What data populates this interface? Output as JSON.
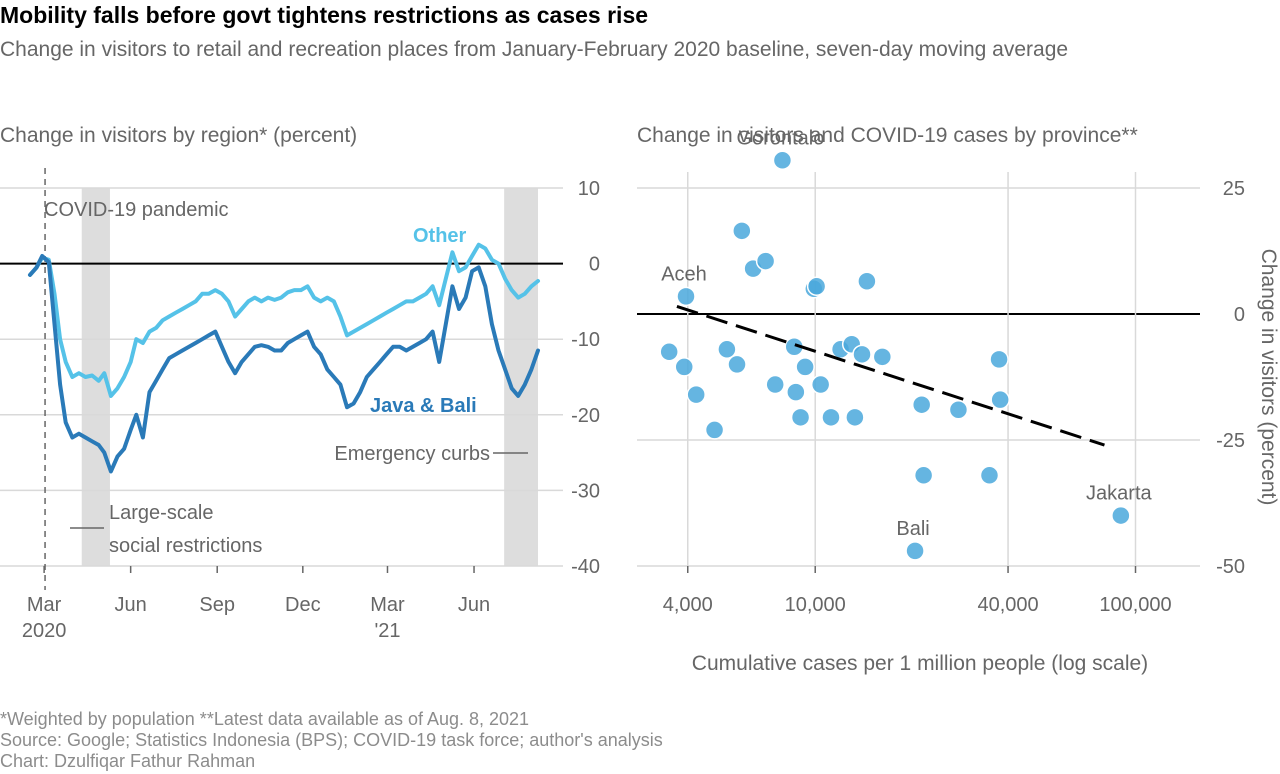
{
  "header": {
    "title": "Mobility falls before govt tightens restrictions as cases rise",
    "subtitle": "Change in visitors to retail and recreation places from January-February 2020 baseline, seven-day moving average"
  },
  "footer": {
    "note": "*Weighted by population **Latest data available as of Aug. 8, 2021",
    "source": "Source: Google; Statistics Indonesia (BPS); COVID-19 task force; author's analysis",
    "credit": "Chart: Dzulfiqar Fathur Rahman"
  },
  "colors": {
    "java_bali": "#2a7ab8",
    "other": "#55c2e8",
    "dots": "#4aa8dc",
    "band": "#dddddd",
    "grid": "#d9d9d9",
    "axis_text": "#666666"
  },
  "chart_data": [
    {
      "type": "line",
      "title": "Change in visitors by region* (percent)",
      "ylim": [
        -40,
        10
      ],
      "yticks": [
        10,
        0,
        -10,
        -20,
        -30,
        -40
      ],
      "ytick_labels": [
        "10",
        "0",
        "-10",
        "-20",
        "-30",
        "-40"
      ],
      "xticks": [
        {
          "date": "2020-03-01",
          "label": "Mar",
          "label2": "2020"
        },
        {
          "date": "2020-06-01",
          "label": "Jun",
          "label2": ""
        },
        {
          "date": "2020-09-01",
          "label": "Sep",
          "label2": ""
        },
        {
          "date": "2020-12-01",
          "label": "Dec",
          "label2": ""
        },
        {
          "date": "2021-03-01",
          "label": "Mar",
          "label2": "'21"
        },
        {
          "date": "2021-06-01",
          "label": "Jun",
          "label2": ""
        }
      ],
      "xrange": [
        "2020-02-15",
        "2021-08-08"
      ],
      "pandemic_date": "2020-03-02",
      "bands": [
        {
          "start": "2020-04-10",
          "end": "2020-05-10"
        },
        {
          "start": "2021-07-03",
          "end": "2021-08-08"
        }
      ],
      "annotations": {
        "pandemic": "COVID-19 pandemic",
        "psbb_line1": "Large-scale",
        "psbb_line2": "social restrictions",
        "emergency": "Emergency curbs"
      },
      "series": [
        {
          "name": "Other",
          "points": [
            [
              "2020-02-15",
              -1.5
            ],
            [
              "2020-02-22",
              -0.5
            ],
            [
              "2020-02-28",
              0.8
            ],
            [
              "2020-03-06",
              0.5
            ],
            [
              "2020-03-12",
              -4
            ],
            [
              "2020-03-18",
              -10
            ],
            [
              "2020-03-24",
              -13
            ],
            [
              "2020-03-31",
              -15
            ],
            [
              "2020-04-07",
              -14.5
            ],
            [
              "2020-04-14",
              -15
            ],
            [
              "2020-04-21",
              -14.8
            ],
            [
              "2020-04-28",
              -15.5
            ],
            [
              "2020-05-04",
              -14.5
            ],
            [
              "2020-05-11",
              -17.5
            ],
            [
              "2020-05-18",
              -16.5
            ],
            [
              "2020-05-25",
              -15
            ],
            [
              "2020-06-01",
              -13
            ],
            [
              "2020-06-07",
              -10
            ],
            [
              "2020-06-14",
              -10.5
            ],
            [
              "2020-06-21",
              -9
            ],
            [
              "2020-06-28",
              -8.5
            ],
            [
              "2020-07-05",
              -7.5
            ],
            [
              "2020-07-12",
              -7
            ],
            [
              "2020-07-19",
              -6.5
            ],
            [
              "2020-07-26",
              -6
            ],
            [
              "2020-08-02",
              -5.5
            ],
            [
              "2020-08-09",
              -5
            ],
            [
              "2020-08-16",
              -4
            ],
            [
              "2020-08-23",
              -4
            ],
            [
              "2020-08-30",
              -3.5
            ],
            [
              "2020-09-06",
              -4
            ],
            [
              "2020-09-13",
              -5
            ],
            [
              "2020-09-20",
              -7
            ],
            [
              "2020-09-27",
              -6
            ],
            [
              "2020-10-04",
              -5
            ],
            [
              "2020-10-11",
              -4.5
            ],
            [
              "2020-10-18",
              -5
            ],
            [
              "2020-10-25",
              -4.5
            ],
            [
              "2020-11-01",
              -4.8
            ],
            [
              "2020-11-08",
              -4.5
            ],
            [
              "2020-11-15",
              -3.8
            ],
            [
              "2020-11-22",
              -3.5
            ],
            [
              "2020-11-29",
              -3.5
            ],
            [
              "2020-12-06",
              -3
            ],
            [
              "2020-12-13",
              -4.5
            ],
            [
              "2020-12-20",
              -5
            ],
            [
              "2020-12-27",
              -4.5
            ],
            [
              "2021-01-03",
              -5
            ],
            [
              "2021-01-10",
              -7
            ],
            [
              "2021-01-17",
              -9.5
            ],
            [
              "2021-01-24",
              -9
            ],
            [
              "2021-01-31",
              -8.5
            ],
            [
              "2021-02-07",
              -8
            ],
            [
              "2021-02-14",
              -7.5
            ],
            [
              "2021-02-21",
              -7
            ],
            [
              "2021-02-28",
              -6.5
            ],
            [
              "2021-03-07",
              -6
            ],
            [
              "2021-03-14",
              -5.5
            ],
            [
              "2021-03-21",
              -5
            ],
            [
              "2021-03-28",
              -5
            ],
            [
              "2021-04-04",
              -4.5
            ],
            [
              "2021-04-11",
              -4
            ],
            [
              "2021-04-18",
              -3
            ],
            [
              "2021-04-25",
              -5.5
            ],
            [
              "2021-05-02",
              -2
            ],
            [
              "2021-05-09",
              1.5
            ],
            [
              "2021-05-16",
              -1
            ],
            [
              "2021-05-23",
              -0.5
            ],
            [
              "2021-05-30",
              1
            ],
            [
              "2021-06-06",
              2.5
            ],
            [
              "2021-06-13",
              2
            ],
            [
              "2021-06-20",
              0.5
            ],
            [
              "2021-06-27",
              0
            ],
            [
              "2021-07-04",
              -2
            ],
            [
              "2021-07-11",
              -3.5
            ],
            [
              "2021-07-18",
              -4.5
            ],
            [
              "2021-07-25",
              -4
            ],
            [
              "2021-08-01",
              -3
            ],
            [
              "2021-08-08",
              -2.3
            ]
          ]
        },
        {
          "name": "Java & Bali",
          "points": [
            [
              "2020-02-15",
              -1.5
            ],
            [
              "2020-02-22",
              -0.5
            ],
            [
              "2020-02-28",
              1.0
            ],
            [
              "2020-03-06",
              0.2
            ],
            [
              "2020-03-12",
              -8
            ],
            [
              "2020-03-18",
              -16
            ],
            [
              "2020-03-24",
              -21
            ],
            [
              "2020-03-31",
              -23
            ],
            [
              "2020-04-07",
              -22.5
            ],
            [
              "2020-04-14",
              -23
            ],
            [
              "2020-04-21",
              -23.5
            ],
            [
              "2020-04-28",
              -24
            ],
            [
              "2020-05-04",
              -25
            ],
            [
              "2020-05-11",
              -27.5
            ],
            [
              "2020-05-18",
              -25.5
            ],
            [
              "2020-05-25",
              -24.5
            ],
            [
              "2020-06-01",
              -22
            ],
            [
              "2020-06-07",
              -20
            ],
            [
              "2020-06-14",
              -23
            ],
            [
              "2020-06-21",
              -17
            ],
            [
              "2020-06-28",
              -15.5
            ],
            [
              "2020-07-05",
              -14
            ],
            [
              "2020-07-12",
              -12.5
            ],
            [
              "2020-07-19",
              -12
            ],
            [
              "2020-07-26",
              -11.5
            ],
            [
              "2020-08-02",
              -11
            ],
            [
              "2020-08-09",
              -10.5
            ],
            [
              "2020-08-16",
              -10
            ],
            [
              "2020-08-23",
              -9.5
            ],
            [
              "2020-08-30",
              -9
            ],
            [
              "2020-09-06",
              -11
            ],
            [
              "2020-09-13",
              -13
            ],
            [
              "2020-09-20",
              -14.5
            ],
            [
              "2020-09-27",
              -13
            ],
            [
              "2020-10-04",
              -12
            ],
            [
              "2020-10-11",
              -11
            ],
            [
              "2020-10-18",
              -10.8
            ],
            [
              "2020-10-25",
              -11
            ],
            [
              "2020-11-01",
              -11.5
            ],
            [
              "2020-11-08",
              -11.5
            ],
            [
              "2020-11-15",
              -10.5
            ],
            [
              "2020-11-22",
              -10
            ],
            [
              "2020-11-29",
              -9.5
            ],
            [
              "2020-12-06",
              -9
            ],
            [
              "2020-12-13",
              -11
            ],
            [
              "2020-12-20",
              -12
            ],
            [
              "2020-12-27",
              -14
            ],
            [
              "2021-01-03",
              -15
            ],
            [
              "2021-01-10",
              -16
            ],
            [
              "2021-01-17",
              -19
            ],
            [
              "2021-01-24",
              -18.5
            ],
            [
              "2021-01-31",
              -17
            ],
            [
              "2021-02-07",
              -15
            ],
            [
              "2021-02-14",
              -14
            ],
            [
              "2021-02-21",
              -13
            ],
            [
              "2021-02-28",
              -12
            ],
            [
              "2021-03-07",
              -11
            ],
            [
              "2021-03-14",
              -11
            ],
            [
              "2021-03-21",
              -11.5
            ],
            [
              "2021-03-28",
              -11
            ],
            [
              "2021-04-04",
              -10.5
            ],
            [
              "2021-04-11",
              -10
            ],
            [
              "2021-04-18",
              -9
            ],
            [
              "2021-04-25",
              -13
            ],
            [
              "2021-05-02",
              -8
            ],
            [
              "2021-05-09",
              -3
            ],
            [
              "2021-05-16",
              -6
            ],
            [
              "2021-05-23",
              -4.5
            ],
            [
              "2021-05-30",
              -1
            ],
            [
              "2021-06-06",
              -0.5
            ],
            [
              "2021-06-13",
              -3
            ],
            [
              "2021-06-20",
              -8
            ],
            [
              "2021-06-27",
              -11.5
            ],
            [
              "2021-07-04",
              -14
            ],
            [
              "2021-07-11",
              -16.5
            ],
            [
              "2021-07-18",
              -17.5
            ],
            [
              "2021-07-25",
              -16
            ],
            [
              "2021-08-01",
              -14
            ],
            [
              "2021-08-08",
              -11.5
            ]
          ]
        }
      ]
    },
    {
      "type": "scatter",
      "title": "Change in visitors and COVID-19 cases by province**",
      "xlabel": "Cumulative cases per 1 million people (log scale)",
      "ylabel": "Change in visitors (percent)",
      "xscale": "log",
      "xlim": [
        3300,
        130000
      ],
      "ylim": [
        -50,
        25
      ],
      "yticks": [
        25,
        0,
        -25,
        -50
      ],
      "ytick_labels": [
        "25",
        "0",
        "-25",
        "-50"
      ],
      "xticks": [
        4000,
        10000,
        40000,
        100000
      ],
      "xtick_labels": [
        "4,000",
        "10,000",
        "40,000",
        "100,000"
      ],
      "trend": [
        [
          3700,
          1.5
        ],
        [
          80000,
          -26
        ]
      ],
      "points": [
        {
          "x": 3500,
          "y": -7.5,
          "label": ""
        },
        {
          "x": 3950,
          "y": 3.5,
          "label": "Aceh"
        },
        {
          "x": 3900,
          "y": -10.5,
          "label": ""
        },
        {
          "x": 4250,
          "y": -16,
          "label": ""
        },
        {
          "x": 4850,
          "y": -23,
          "label": ""
        },
        {
          "x": 5300,
          "y": -7,
          "label": ""
        },
        {
          "x": 5700,
          "y": -10,
          "label": ""
        },
        {
          "x": 5900,
          "y": 16.5,
          "label": ""
        },
        {
          "x": 6400,
          "y": 9,
          "label": ""
        },
        {
          "x": 7000,
          "y": 10.5,
          "label": ""
        },
        {
          "x": 7500,
          "y": -14,
          "label": ""
        },
        {
          "x": 7900,
          "y": 30.5,
          "label": "Gorontalo"
        },
        {
          "x": 8600,
          "y": -6.5,
          "label": ""
        },
        {
          "x": 8700,
          "y": -15.5,
          "label": ""
        },
        {
          "x": 9000,
          "y": -20.5,
          "label": ""
        },
        {
          "x": 9300,
          "y": -10.5,
          "label": ""
        },
        {
          "x": 9900,
          "y": 5,
          "label": ""
        },
        {
          "x": 10100,
          "y": 5.5,
          "label": ""
        },
        {
          "x": 10400,
          "y": -14,
          "label": ""
        },
        {
          "x": 11200,
          "y": -20.5,
          "label": ""
        },
        {
          "x": 12000,
          "y": -7,
          "label": ""
        },
        {
          "x": 13000,
          "y": -6,
          "label": ""
        },
        {
          "x": 13300,
          "y": -20.5,
          "label": ""
        },
        {
          "x": 14000,
          "y": -8,
          "label": ""
        },
        {
          "x": 14500,
          "y": 6.5,
          "label": ""
        },
        {
          "x": 16200,
          "y": -8.5,
          "label": ""
        },
        {
          "x": 20500,
          "y": -47,
          "label": "Bali"
        },
        {
          "x": 21500,
          "y": -18,
          "label": ""
        },
        {
          "x": 21800,
          "y": -32,
          "label": ""
        },
        {
          "x": 28000,
          "y": -19,
          "label": ""
        },
        {
          "x": 35000,
          "y": -32,
          "label": ""
        },
        {
          "x": 37500,
          "y": -9,
          "label": ""
        },
        {
          "x": 37800,
          "y": -17,
          "label": ""
        },
        {
          "x": 90000,
          "y": -40,
          "label": "Jakarta"
        }
      ]
    }
  ]
}
